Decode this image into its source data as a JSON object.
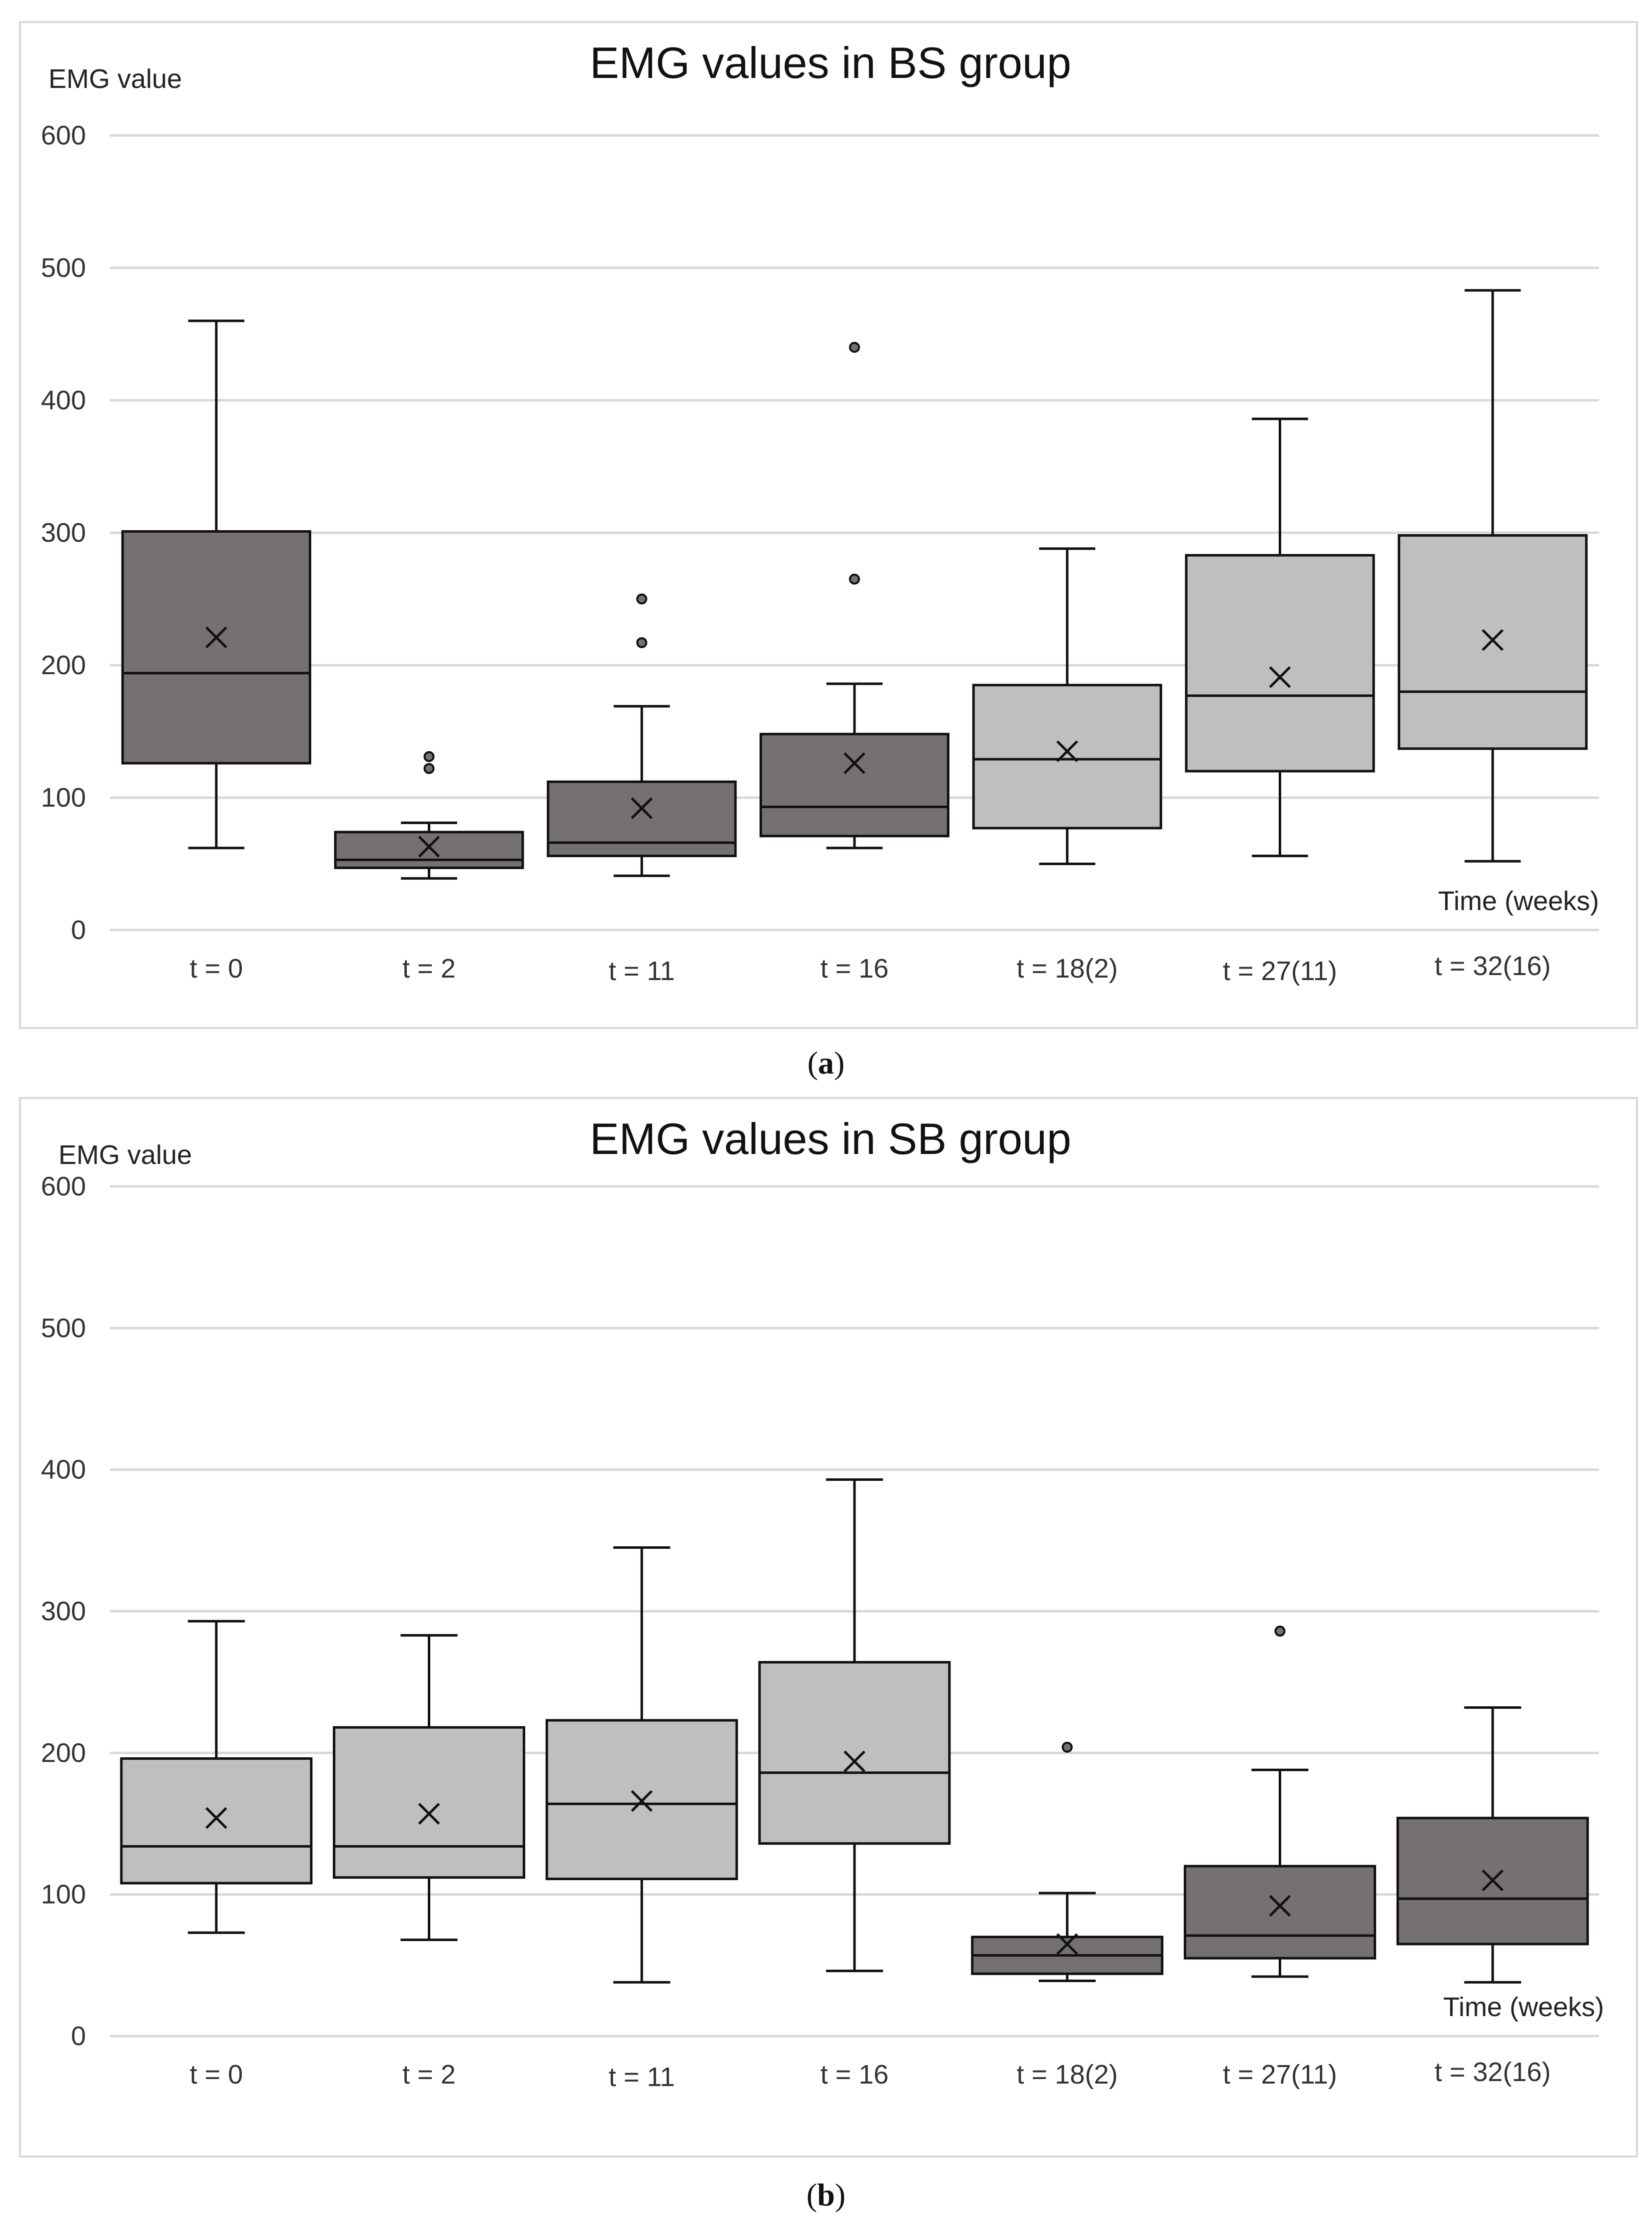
{
  "chart_data": [
    {
      "type": "box",
      "title": "EMG values in BS group",
      "ylabel": "EMG value",
      "xlabel": "Time (weeks)",
      "ylim": [
        0,
        600
      ],
      "yticks": [
        0,
        100,
        200,
        300,
        400,
        500,
        600
      ],
      "grid": true,
      "categories": [
        "t = 0",
        "t = 2",
        "t = 11",
        "t = 16",
        "t = 18(2)",
        "t = 27(11)",
        "t = 32(16)"
      ],
      "boxes": [
        {
          "category": "t = 0",
          "shade": "dark",
          "min": 62,
          "q1": 126,
          "median": 194,
          "q3": 301,
          "max": 460,
          "mean": 221,
          "outliers": []
        },
        {
          "category": "t = 2",
          "shade": "dark",
          "min": 39,
          "q1": 47,
          "median": 53,
          "q3": 74,
          "max": 81,
          "mean": 63,
          "outliers": [
            122,
            131
          ]
        },
        {
          "category": "t = 11",
          "shade": "dark",
          "min": 41,
          "q1": 56,
          "median": 66,
          "q3": 112,
          "max": 169,
          "mean": 92,
          "outliers": [
            217,
            250
          ]
        },
        {
          "category": "t = 16",
          "shade": "dark",
          "min": 62,
          "q1": 71,
          "median": 93,
          "q3": 148,
          "max": 186,
          "mean": 126,
          "outliers": [
            265,
            440
          ]
        },
        {
          "category": "t = 18(2)",
          "shade": "light",
          "min": 50,
          "q1": 77,
          "median": 129,
          "q3": 185,
          "max": 288,
          "mean": 135,
          "outliers": []
        },
        {
          "category": "t = 27(11)",
          "shade": "light",
          "min": 56,
          "q1": 120,
          "median": 177,
          "q3": 283,
          "max": 386,
          "mean": 191,
          "outliers": []
        },
        {
          "category": "t = 32(16)",
          "shade": "light",
          "min": 52,
          "q1": 137,
          "median": 180,
          "q3": 298,
          "max": 483,
          "mean": 219,
          "outliers": []
        }
      ],
      "caption": "a"
    },
    {
      "type": "box",
      "title": "EMG values in SB group",
      "ylabel": "EMG value",
      "xlabel": "Time (weeks)",
      "ylim": [
        0,
        600
      ],
      "yticks": [
        0,
        100,
        200,
        300,
        400,
        500,
        600
      ],
      "grid": true,
      "categories": [
        "t = 0",
        "t = 2",
        "t = 11",
        "t = 16",
        "t = 18(2)",
        "t = 27(11)",
        "t = 32(16)"
      ],
      "boxes": [
        {
          "category": "t = 0",
          "shade": "light",
          "min": 73,
          "q1": 108,
          "median": 134,
          "q3": 196,
          "max": 293,
          "mean": 154,
          "outliers": []
        },
        {
          "category": "t = 2",
          "shade": "light",
          "min": 68,
          "q1": 112,
          "median": 134,
          "q3": 218,
          "max": 283,
          "mean": 157,
          "outliers": []
        },
        {
          "category": "t = 11",
          "shade": "light",
          "min": 38,
          "q1": 111,
          "median": 164,
          "q3": 223,
          "max": 345,
          "mean": 166,
          "outliers": []
        },
        {
          "category": "t = 16",
          "shade": "light",
          "min": 46,
          "q1": 136,
          "median": 186,
          "q3": 264,
          "max": 393,
          "mean": 194,
          "outliers": []
        },
        {
          "category": "t = 18(2)",
          "shade": "dark",
          "min": 39,
          "q1": 44,
          "median": 57,
          "q3": 70,
          "max": 101,
          "mean": 65,
          "outliers": [
            204
          ]
        },
        {
          "category": "t = 27(11)",
          "shade": "dark",
          "min": 42,
          "q1": 55,
          "median": 71,
          "q3": 120,
          "max": 188,
          "mean": 92,
          "outliers": [
            286
          ]
        },
        {
          "category": "t = 32(16)",
          "shade": "dark",
          "min": 38,
          "q1": 65,
          "median": 97,
          "q3": 154,
          "max": 232,
          "mean": 110,
          "outliers": []
        }
      ],
      "caption": "b"
    }
  ],
  "colors": {
    "dark_box": "#767171",
    "light_box": "#bfbfbf",
    "grid": "#d9d9d9"
  }
}
